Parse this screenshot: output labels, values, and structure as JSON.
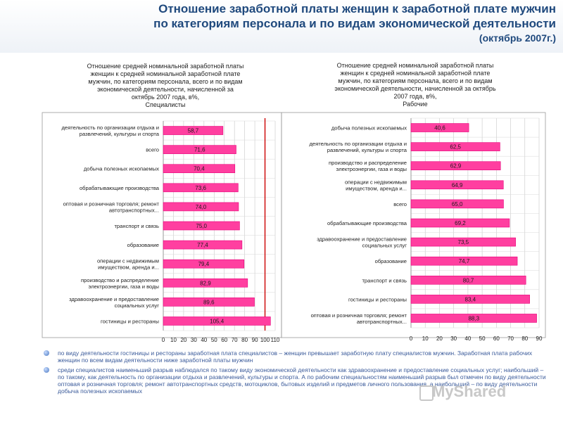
{
  "header": {
    "title_line1": "Отношение заработной платы женщин к заработной плате мужчин",
    "title_line2": "по категориям персонала и по видам экономической деятельности",
    "title_line3": "(октябрь 2007г.)"
  },
  "chart_data": [
    {
      "type": "bar",
      "orientation": "horizontal",
      "title_lines": [
        "Отношение  средней номинальной заработной платы",
        "женщин к средней номинальной заработной плате",
        "мужчин,  по категориям персонала, всего и по видам",
        "экономической деятельности,  начисленной за",
        "октябрь 2007 года, в%,",
        "Специалисты"
      ],
      "categories": [
        [
          "деятельность по организации отдыха и",
          "развлечений, культуры и спорта"
        ],
        [
          "всего"
        ],
        [
          "добыча полезных ископаемых"
        ],
        [
          "обрабатывающие производства"
        ],
        [
          "оптовая и розничная торговля; ремонт",
          "автотранспортных..."
        ],
        [
          "транспорт и связь"
        ],
        [
          "образование"
        ],
        [
          "операции с недвижимым",
          "имуществом, аренда и..."
        ],
        [
          "производство и распределение",
          "электроэнергии, газа и воды"
        ],
        [
          "здравоохранение и предоставление",
          "социальных услуг"
        ],
        [
          "гостиницы и рестораны"
        ]
      ],
      "values": [
        58.7,
        71.6,
        70.4,
        73.6,
        74.0,
        75.0,
        77.4,
        79.4,
        82.9,
        89.6,
        105.4
      ],
      "value_labels": [
        "58,7",
        "71,6",
        "70,4",
        "73,6",
        "74,0",
        "75,0",
        "77,4",
        "79,4",
        "82,9",
        "89,6",
        "105,4"
      ],
      "xlim": [
        0,
        110
      ],
      "xticks": [
        0,
        10,
        20,
        30,
        40,
        50,
        60,
        70,
        80,
        90,
        100,
        110
      ],
      "tick_labels": [
        "0",
        "10",
        "20",
        "30",
        "40",
        "50",
        "60",
        "70",
        "80",
        "90",
        "100",
        "110"
      ],
      "reference_line": 100,
      "grid": true
    },
    {
      "type": "bar",
      "orientation": "horizontal",
      "title_lines": [
        "Отношение  средней номинальной заработной платы",
        "женщин к средней номинальной заработной плате",
        "мужчин,  по категориям персонала, всего и по видам",
        "экономической деятельности,  начисленной за октябрь",
        "2007 года, в%,",
        "Рабочие"
      ],
      "categories": [
        [
          "добыча полезных ископаемых"
        ],
        [
          "деятельность по организации отдыха и",
          "развлечений, культуры и спорта"
        ],
        [
          "производство и распределение",
          "электроэнергии, газа и воды"
        ],
        [
          "операции с недвижимым",
          "имуществом, аренда и..."
        ],
        [
          "всего"
        ],
        [
          "обрабатывающие производства"
        ],
        [
          "здравоохранение и предоставление",
          "социальных услуг"
        ],
        [
          "образование"
        ],
        [
          "транспорт и связь"
        ],
        [
          "гостиницы и рестораны"
        ],
        [
          "оптовая и розничная торговля; ремонт",
          "автотранспортных..."
        ]
      ],
      "values": [
        40.6,
        62.5,
        62.9,
        64.9,
        65.0,
        69.2,
        73.5,
        74.7,
        80.7,
        83.4,
        88.3
      ],
      "value_labels": [
        "40,6",
        "62,5",
        "62,9",
        "64,9",
        "65,0",
        "69,2",
        "73,5",
        "74,7",
        "80,7",
        "83,4",
        "88,3"
      ],
      "xlim": [
        0,
        90
      ],
      "xticks": [
        0,
        10,
        20,
        30,
        40,
        50,
        60,
        70,
        80,
        90
      ],
      "tick_labels": [
        "0",
        "10",
        "20",
        "30",
        "40",
        "50",
        "60",
        "70",
        "80",
        "90"
      ],
      "grid": true
    }
  ],
  "colors": {
    "title": "#1f497d",
    "bar_fill": "#ff3fa0",
    "bar_stroke": "#e7007a",
    "reference_line": "#cc0000",
    "notes_text": "#3a5a9a"
  },
  "notes": [
    "по виду деятельности гостиницы и рестораны заработная плата специалистов – женщин превышает заработную плату специалистов мужчин. Заработная плата рабочих женщин по всем видам деятельности ниже заработной платы мужчин",
    "среди специалистов наименьший разрыв наблюдался по такому виду экономической деятельности как здравоохранение и предоставление социальных услуг; наибольший – по такому, как деятельность по организации отдыха и развлечений, культуры и спорта. А по рабочим специальностям наименьший разрыв был отмечен по виду деятельности оптовая и розничная торговля; ремонт автотранспортных средств, мотоциклов, бытовых изделий и предметов личного пользования, а наибольший – по виду деятельности добыча полезных ископаемых"
  ],
  "watermark": "MyShared"
}
